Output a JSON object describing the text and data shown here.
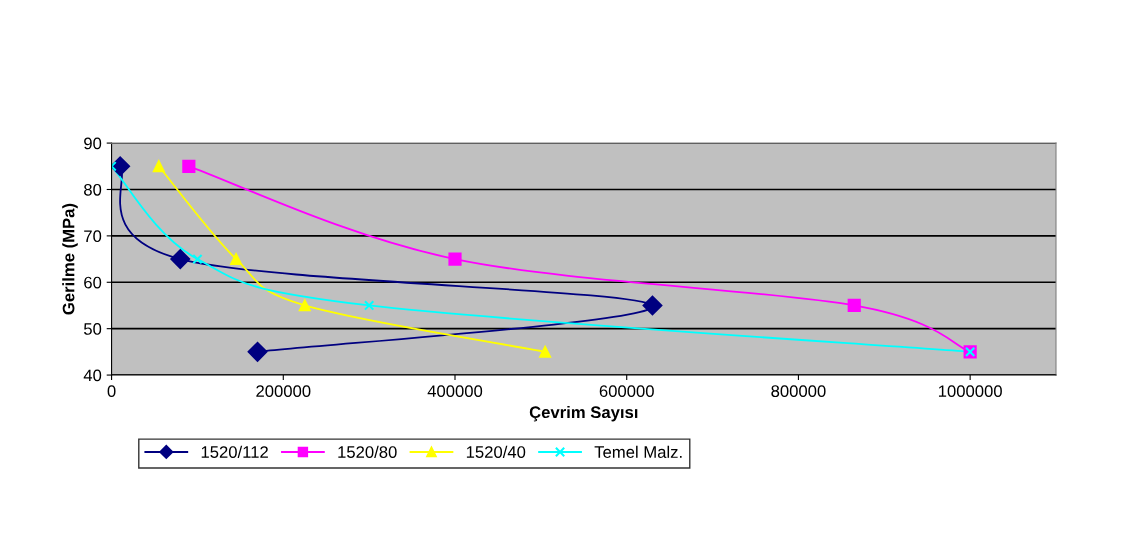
{
  "chart_data": {
    "type": "line",
    "xlabel": "Çevrim Sayısı",
    "ylabel": "Gerilme (MPa)",
    "xlim": [
      0,
      1100000
    ],
    "xticks": [
      0,
      200000,
      400000,
      600000,
      800000,
      1000000
    ],
    "ylim": [
      40,
      90
    ],
    "yticks": [
      40,
      50,
      60,
      70,
      80,
      90
    ],
    "grid": "y",
    "legend": "bottom",
    "line_style": "solid",
    "series": [
      {
        "name": "1520/112",
        "color": "#000080",
        "marker": "diamond",
        "x": [
          10000,
          80000,
          630000,
          170000
        ],
        "values": [
          85,
          65,
          55,
          45
        ]
      },
      {
        "name": "1520/80",
        "color": "#ff00ff",
        "marker": "square",
        "x": [
          90000,
          400000,
          865000,
          1000000
        ],
        "values": [
          85,
          65,
          55,
          45
        ]
      },
      {
        "name": "1520/40",
        "color": "#ffff00",
        "marker": "triangle",
        "x": [
          55000,
          145000,
          225000,
          505000
        ],
        "values": [
          85,
          65,
          55,
          45
        ]
      },
      {
        "name": "Temel Malz.",
        "color": "#00ffff",
        "marker": "cross",
        "x": [
          0,
          100000,
          300000,
          1000000
        ],
        "values": [
          85,
          65,
          55,
          45
        ]
      }
    ]
  }
}
